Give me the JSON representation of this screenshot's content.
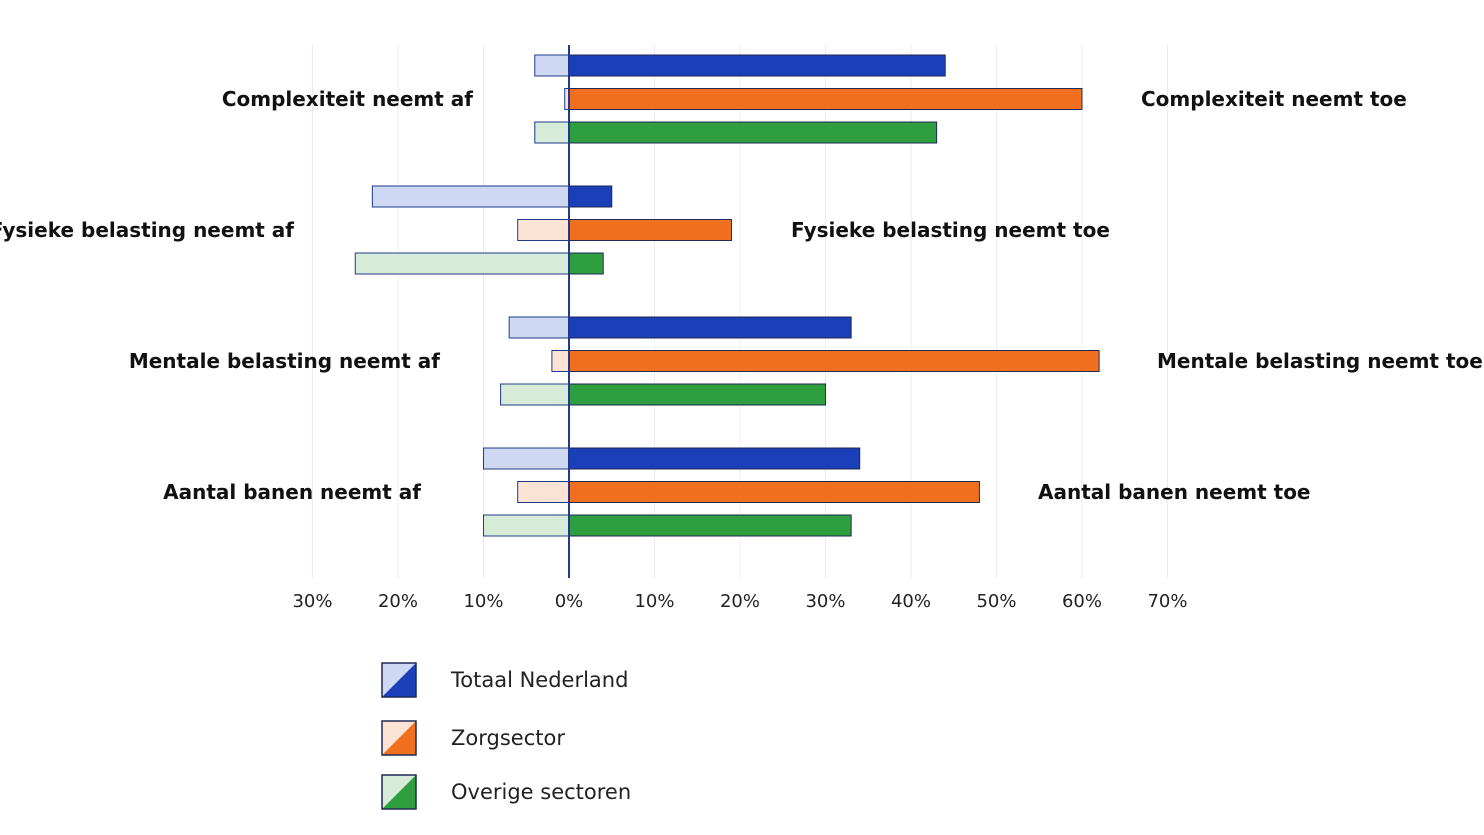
{
  "chart_data": {
    "type": "bar",
    "orientation": "horizontal-diverging",
    "categories": [
      "Complexiteit",
      "Fysieke belasting",
      "Mentale belasting",
      "Aantal banen"
    ],
    "left_labels": [
      "Complexiteit neemt af",
      "Fysieke belasting neemt af",
      "Mentale belasting neemt af",
      "Aantal banen neemt af"
    ],
    "right_labels": [
      "Complexiteit neemt toe",
      "Fysieke belasting neemt toe",
      "Mentale belasting neemt toe",
      "Aantal banen neemt toe"
    ],
    "series": [
      {
        "name": "Totaal Nederland",
        "decrease": [
          4,
          23,
          7,
          10
        ],
        "increase": [
          44,
          5,
          33,
          34
        ],
        "color_dark": "#1a3fb8",
        "color_light": "#cfd8f2"
      },
      {
        "name": "Zorgsector",
        "decrease": [
          0.5,
          6,
          2,
          6
        ],
        "increase": [
          60,
          19,
          62,
          48
        ],
        "color_dark": "#f07020",
        "color_light": "#fde3d4"
      },
      {
        "name": "Overige sectoren",
        "decrease": [
          4,
          25,
          8,
          10
        ],
        "increase": [
          43,
          4,
          30,
          33
        ],
        "color_dark": "#2e9e3e",
        "color_light": "#d6ecd8"
      }
    ],
    "x_ticks": [
      "30%",
      "20%",
      "10%",
      "0%",
      "10%",
      "20%",
      "30%",
      "40%",
      "50%",
      "60%",
      "70%"
    ],
    "xlim": [
      -30,
      70
    ],
    "grid": true,
    "legend_position": "bottom-left"
  }
}
